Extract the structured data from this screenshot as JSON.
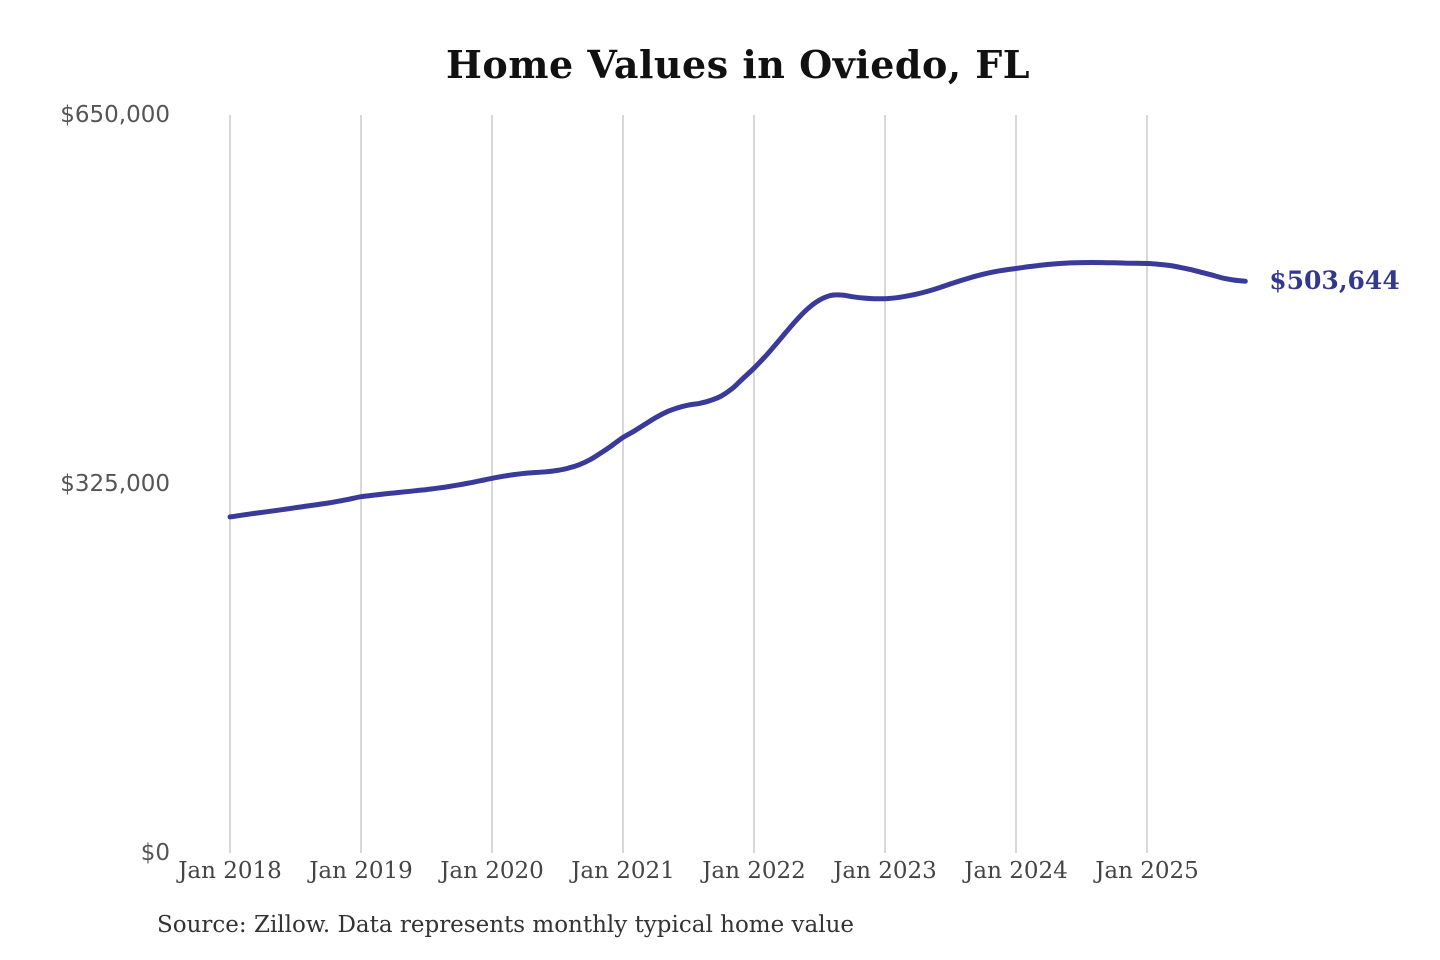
{
  "chart_data": {
    "type": "line",
    "title": "Home Values in Oviedo, FL",
    "source_note": "Source: Zillow. Data represents monthly typical home value",
    "end_label": "$503,644",
    "latest_value": 503644,
    "frequency": "monthly",
    "x_start": "Jan 2018",
    "x_end": "Oct 2025",
    "x_ticks": [
      "Jan 2018",
      "Jan 2019",
      "Jan 2020",
      "Jan 2021",
      "Jan 2022",
      "Jan 2023",
      "Jan 2024",
      "Jan 2025"
    ],
    "y_ticks": [
      {
        "label": "$650,000",
        "value": 650000
      },
      {
        "label": "$325,000",
        "value": 325000
      },
      {
        "label": "$0",
        "value": 0
      }
    ],
    "ylim": [
      0,
      650000
    ],
    "grid": "vertical-only",
    "legend": "none",
    "colors": {
      "line": "#3a3a9a",
      "end_label": "#33388f",
      "gridline": "#cbcbcb",
      "title": "#111111",
      "axis_text": "#4a4a4a"
    },
    "series": [
      {
        "name": "Typical home value ($)",
        "values": [
          296000,
          297400,
          298800,
          300100,
          301400,
          302700,
          304100,
          305500,
          306900,
          308300,
          309900,
          311800,
          313800,
          315000,
          316100,
          317100,
          318100,
          319100,
          320100,
          321300,
          322700,
          324300,
          326100,
          328000,
          330000,
          331800,
          333300,
          334400,
          335100,
          335800,
          337000,
          339000,
          342000,
          346500,
          352500,
          359000,
          366000,
          371500,
          377500,
          383500,
          388500,
          392000,
          394500,
          396000,
          398500,
          402500,
          409000,
          418000,
          427000,
          437000,
          448000,
          459500,
          470500,
          480000,
          487000,
          491000,
          491500,
          490000,
          488800,
          488200,
          488200,
          489000,
          490500,
          492500,
          495000,
          498000,
          501200,
          504300,
          507200,
          509800,
          511900,
          513500,
          514800,
          516200,
          517400,
          518400,
          519200,
          519700,
          520000,
          520100,
          520000,
          519800,
          519600,
          519400,
          519200,
          518600,
          517500,
          515900,
          513800,
          511400,
          508900,
          506300,
          504600,
          503644
        ]
      }
    ]
  }
}
